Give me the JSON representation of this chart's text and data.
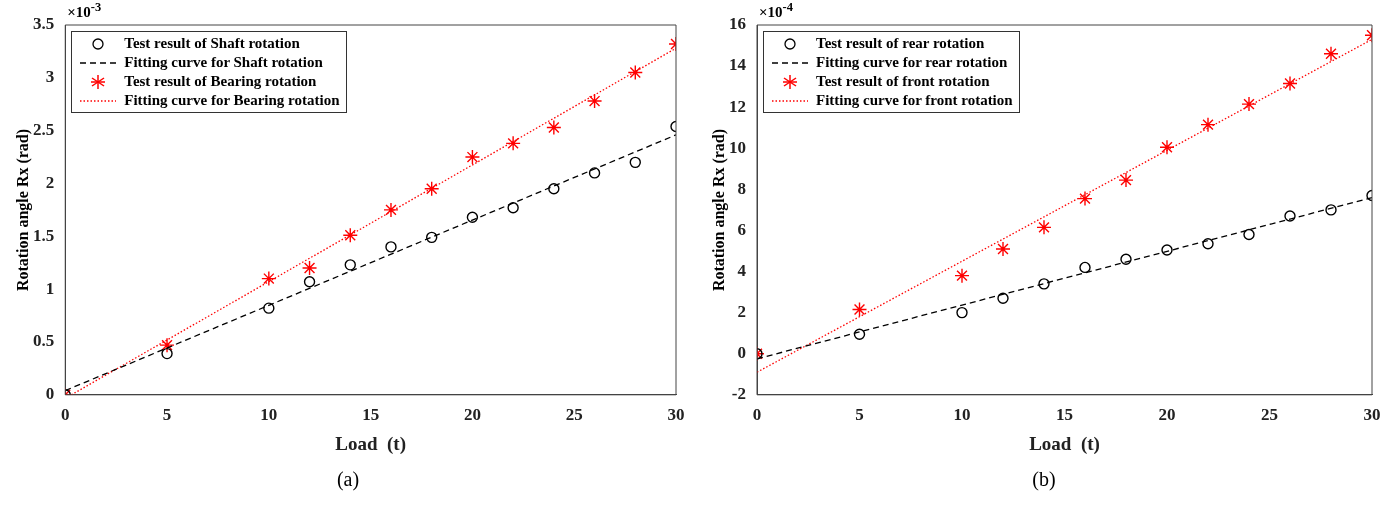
{
  "chart_data": [
    {
      "type": "scatter",
      "xlabel": "Load  (t)",
      "ylabel": "Rotation angle Rx (rad)",
      "x": [
        0,
        5,
        10,
        12,
        14,
        16,
        18,
        20,
        22,
        24,
        26,
        28,
        30
      ],
      "xlim": [
        0,
        30
      ],
      "xticks": [
        0,
        5,
        10,
        15,
        20,
        25,
        30
      ],
      "ylim": [
        0,
        3.5
      ],
      "yticks": [
        0,
        0.5,
        1,
        1.5,
        2,
        2.5,
        3,
        3.5
      ],
      "grid": false,
      "legend": "top left",
      "annotations": [
        "×10$^{-3}$",
        "(a)"
      ],
      "series": [
        {
          "name": "Test result of Shaft rotation",
          "marker": "circle",
          "color": "#000000",
          "values": [
            0,
            0.39,
            0.82,
            1.07,
            1.23,
            1.4,
            1.49,
            1.68,
            1.77,
            1.95,
            2.1,
            2.2,
            2.54
          ]
        },
        {
          "name": "Fitting curve for Shaft rotation",
          "type": "line",
          "line_style": "dashed",
          "color": "#000000",
          "x": [
            0,
            30
          ],
          "values": [
            0.04,
            2.46
          ]
        },
        {
          "name": "Test result of Bearing rotation",
          "marker": "cross",
          "color": "#ff0000",
          "values": [
            0,
            0.47,
            1.1,
            1.2,
            1.51,
            1.75,
            1.95,
            2.25,
            2.38,
            2.53,
            2.78,
            3.05,
            3.32
          ]
        },
        {
          "name": "Fitting curve for Bearing rotation",
          "type": "line",
          "line_style": "dotted",
          "color": "#ff0000",
          "x": [
            0.3,
            30
          ],
          "values": [
            0,
            3.28
          ]
        }
      ]
    },
    {
      "type": "scatter",
      "xlabel": "Load  (t)",
      "ylabel": "Rotation angle Rx (rad)",
      "x": [
        0,
        5,
        10,
        12,
        14,
        16,
        18,
        20,
        22,
        24,
        26,
        28,
        30
      ],
      "xlim": [
        0,
        30
      ],
      "xticks": [
        0,
        5,
        10,
        15,
        20,
        25,
        30
      ],
      "ylim": [
        -2,
        16
      ],
      "yticks": [
        -2,
        0,
        2,
        4,
        6,
        8,
        10,
        12,
        14,
        16
      ],
      "grid": false,
      "legend": "top left",
      "annotations": [
        "×10$^{-4}$",
        "(b)"
      ],
      "series": [
        {
          "name": "Test result of rear rotation",
          "marker": "circle",
          "color": "#000000",
          "values": [
            0,
            0.95,
            2.0,
            2.7,
            3.4,
            4.2,
            4.6,
            5.05,
            5.35,
            5.8,
            6.7,
            7.0,
            7.7
          ]
        },
        {
          "name": "Fitting curve for rear rotation",
          "type": "line",
          "line_style": "dashed",
          "color": "#000000",
          "x": [
            0,
            30
          ],
          "values": [
            -0.25,
            7.6
          ]
        },
        {
          "name": "Test result of front rotation",
          "marker": "cross",
          "color": "#ff0000",
          "values": [
            0,
            2.15,
            3.8,
            5.1,
            6.15,
            7.55,
            8.45,
            10.05,
            11.15,
            12.15,
            13.15,
            14.6,
            15.5
          ]
        },
        {
          "name": "Fitting curve for front rotation",
          "type": "line",
          "line_style": "dotted",
          "color": "#ff0000",
          "x": [
            0,
            30
          ],
          "values": [
            -0.9,
            15.3
          ]
        }
      ]
    }
  ]
}
